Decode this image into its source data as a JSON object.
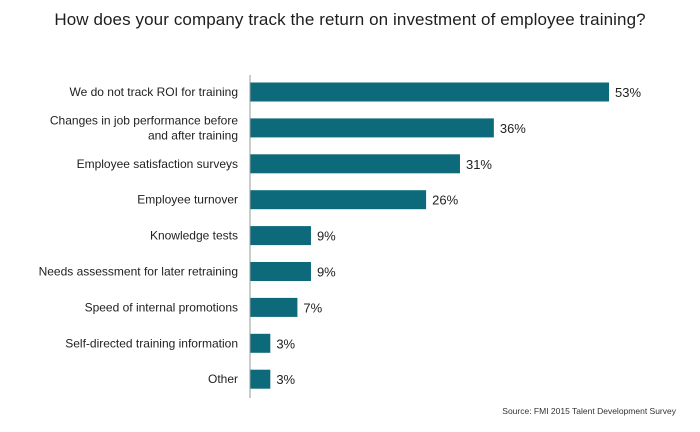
{
  "chart_data": {
    "type": "bar",
    "orientation": "horizontal",
    "title": "How does your company track the return on investment of employee training?",
    "categories": [
      [
        "We do not track ROI for training"
      ],
      [
        "Changes in job performance before",
        "and after training"
      ],
      [
        "Employee satisfaction surveys"
      ],
      [
        "Employee turnover"
      ],
      [
        "Knowledge tests"
      ],
      [
        "Needs assessment for later retraining"
      ],
      [
        "Speed of internal promotions"
      ],
      [
        "Self-directed training information"
      ],
      [
        "Other"
      ]
    ],
    "values": [
      53,
      36,
      31,
      26,
      9,
      9,
      7,
      3,
      3
    ],
    "data_labels": [
      "53%",
      "36%",
      "31%",
      "26%",
      "9%",
      "9%",
      "7%",
      "3%",
      "3%"
    ],
    "unit": "%",
    "xlim": [
      0,
      60
    ],
    "grid": false,
    "legend": "none",
    "bar_color": "#0d6a7a"
  },
  "source": "Source: FMI 2015 Talent Development Survey"
}
